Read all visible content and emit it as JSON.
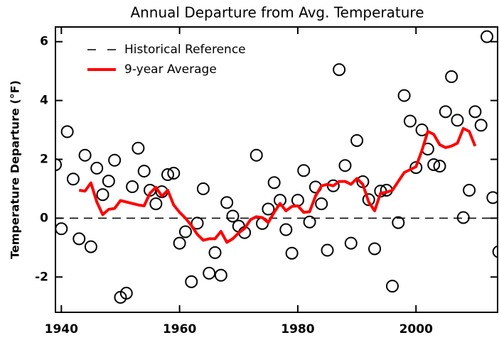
{
  "chart_data": {
    "type": "line",
    "title": "Annual Departure from Avg. Temperature",
    "y_label": "Temperature Departure (°F)",
    "xlim": [
      1939,
      2013.8
    ],
    "ylim": [
      -3.2,
      6.5
    ],
    "xticks": [
      1940,
      1960,
      1980,
      2000
    ],
    "yticks": [
      -2,
      0,
      2,
      4,
      6
    ],
    "legend": "upper left",
    "reference_line": {
      "name": "Historical Reference",
      "value": 0,
      "color": "#000000"
    },
    "series": [
      {
        "type": "scatter",
        "color": "#000000",
        "x": [
          1939,
          1940,
          1941,
          1942,
          1943,
          1944,
          1945,
          1946,
          1947,
          1948,
          1949,
          1950,
          1951,
          1952,
          1953,
          1954,
          1955,
          1956,
          1957,
          1958,
          1959,
          1960,
          1961,
          1962,
          1963,
          1964,
          1965,
          1966,
          1967,
          1968,
          1969,
          1970,
          1971,
          1973,
          1974,
          1975,
          1976,
          1977,
          1978,
          1979,
          1980,
          1981,
          1982,
          1983,
          1984,
          1985,
          1986,
          1987,
          1988,
          1989,
          1990,
          1991,
          1992,
          1993,
          1994,
          1995,
          1996,
          1997,
          1998,
          1999,
          2000,
          2001,
          2002,
          2003,
          2004,
          2005,
          2006,
          2007,
          2008,
          2009,
          2010,
          2011,
          2012,
          2013,
          2014
        ],
        "values": [
          1.82,
          -0.36,
          2.94,
          1.33,
          -0.7,
          2.14,
          -0.97,
          1.7,
          0.8,
          1.26,
          1.97,
          -2.69,
          -2.55,
          1.07,
          2.38,
          1.6,
          0.95,
          0.49,
          0.9,
          1.48,
          1.53,
          -0.85,
          -0.46,
          -2.16,
          -0.17,
          1.0,
          -1.87,
          -1.17,
          -1.94,
          0.53,
          0.07,
          -0.27,
          -0.49,
          2.14,
          -0.18,
          0.31,
          1.21,
          0.61,
          -0.39,
          -1.19,
          0.61,
          1.62,
          -0.13,
          1.06,
          0.49,
          -1.09,
          1.1,
          5.05,
          1.79,
          -0.85,
          2.64,
          1.24,
          0.63,
          -1.04,
          0.92,
          0.95,
          -2.31,
          -0.15,
          4.17,
          3.3,
          1.72,
          3.0,
          2.35,
          1.82,
          1.77,
          3.62,
          4.81,
          3.33,
          0.02,
          0.95,
          3.62,
          3.16,
          6.17,
          0.7,
          -1.14
        ]
      },
      {
        "type": "line",
        "name": "9-year Average",
        "color": "#ff0000",
        "x": [
          1943,
          1944,
          1945,
          1946,
          1947,
          1948,
          1949,
          1950,
          1951,
          1952,
          1953,
          1954,
          1955,
          1956,
          1957,
          1958,
          1959,
          1960,
          1961,
          1962,
          1963,
          1964,
          1965,
          1966,
          1967,
          1968,
          1969,
          1970,
          1971,
          1972,
          1973,
          1974,
          1975,
          1976,
          1977,
          1978,
          1979,
          1980,
          1981,
          1982,
          1983,
          1984,
          1985,
          1986,
          1987,
          1988,
          1989,
          1990,
          1991,
          1992,
          1993,
          1994,
          1995,
          1996,
          1997,
          1998,
          1999,
          2000,
          2001,
          2002,
          2003,
          2004,
          2005,
          2006,
          2007,
          2008,
          2009,
          2010
        ],
        "values": [
          0.95,
          0.92,
          1.2,
          0.55,
          0.12,
          0.3,
          0.33,
          0.6,
          0.55,
          0.5,
          0.45,
          0.42,
          0.85,
          1.05,
          0.75,
          0.95,
          0.45,
          0.2,
          0.0,
          -0.25,
          -0.55,
          -0.75,
          -0.7,
          -0.7,
          -0.45,
          -0.82,
          -0.7,
          -0.5,
          -0.35,
          -0.05,
          0.05,
          0.02,
          -0.15,
          0.2,
          0.5,
          0.25,
          0.4,
          0.42,
          0.2,
          0.22,
          0.75,
          1.1,
          1.15,
          1.1,
          1.25,
          1.25,
          1.15,
          1.35,
          1.15,
          0.55,
          0.25,
          0.85,
          0.88,
          0.95,
          1.25,
          1.55,
          1.65,
          1.75,
          2.3,
          2.95,
          2.85,
          2.5,
          2.4,
          2.45,
          2.55,
          3.05,
          2.95,
          2.45
        ]
      }
    ]
  }
}
